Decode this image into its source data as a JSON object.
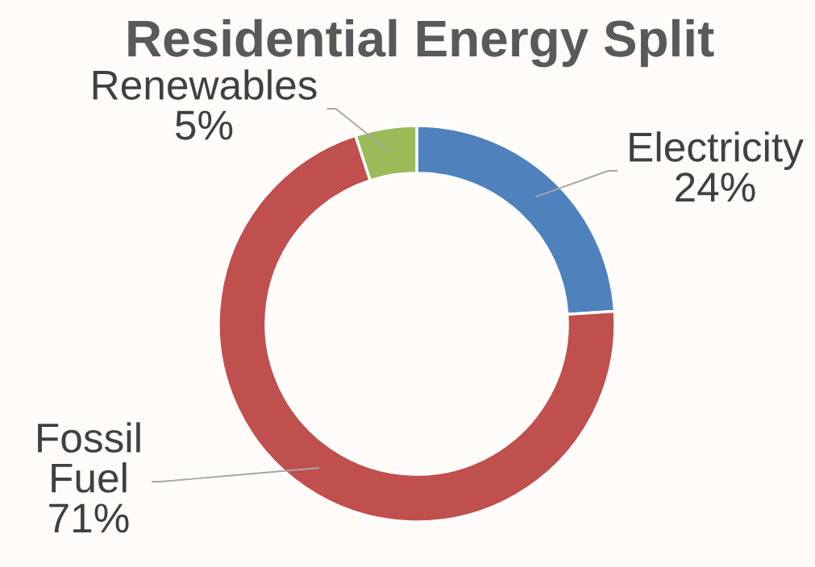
{
  "chart_data": {
    "type": "donut",
    "title": "Residential Energy Split",
    "categories": [
      "Electricity",
      "Fossil Fuel",
      "Renewables"
    ],
    "values": [
      24,
      71,
      5
    ],
    "colors": [
      "#4f81bd",
      "#c0504d",
      "#9bbb59"
    ],
    "value_labels": [
      "24%",
      "71%",
      "5%"
    ]
  }
}
